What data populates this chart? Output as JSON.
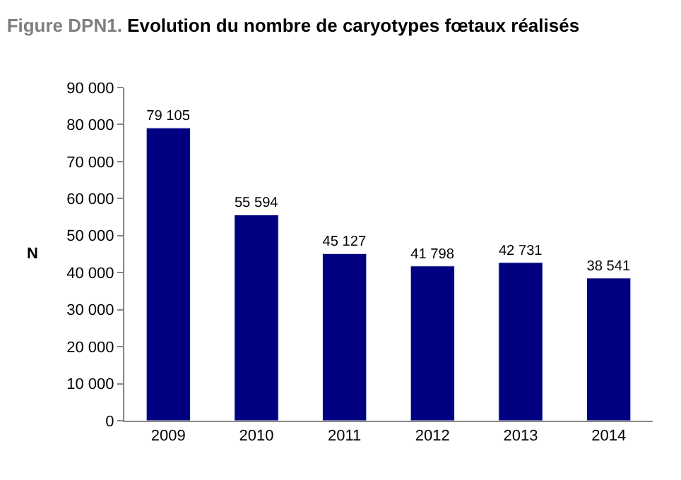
{
  "chart_data": {
    "type": "bar",
    "title": "Figure DPN1. Evolution du nombre de caryotypes fœtaux réalisés",
    "ylabel": "N",
    "categories": [
      "2009",
      "2010",
      "2011",
      "2012",
      "2013",
      "2014"
    ],
    "values": [
      79105,
      55594,
      45127,
      41798,
      42731,
      38541
    ],
    "value_labels": [
      "79 105",
      "55 594",
      "45 127",
      "41 798",
      "42 731",
      "38 541"
    ],
    "color": "#000080",
    "ylim": [
      0,
      90000
    ],
    "yticks": [
      0,
      {
        "value": 10000,
        "label": "10 000"
      },
      {
        "value": 20000,
        "label": "20 000"
      },
      {
        "value": 30000,
        "label": "30 000"
      },
      {
        "value": 40000,
        "label": "40 000"
      },
      {
        "value": 50000,
        "label": "50 000"
      },
      {
        "value": 60000,
        "label": "60 000"
      },
      {
        "value": 70000,
        "label": "70 000"
      },
      {
        "value": 80000,
        "label": "80 000"
      },
      {
        "value": 90000,
        "label": "90 000"
      }
    ]
  }
}
